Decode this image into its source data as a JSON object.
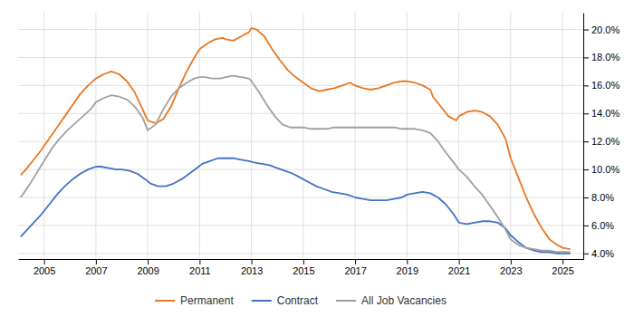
{
  "chart_data": {
    "type": "line",
    "xlim": [
      2004.0,
      2025.8
    ],
    "ylim": [
      0.036,
      0.212
    ],
    "xticks": [
      2005,
      2007,
      2009,
      2011,
      2013,
      2015,
      2017,
      2019,
      2021,
      2023,
      2025
    ],
    "yticks": [
      {
        "value": 0.04,
        "label": "4.0%"
      },
      {
        "value": 0.06,
        "label": "6.0%"
      },
      {
        "value": 0.08,
        "label": "8.0%"
      },
      {
        "value": 0.1,
        "label": "10.0%"
      },
      {
        "value": 0.12,
        "label": "12.0%"
      },
      {
        "value": 0.14,
        "label": "14.0%"
      },
      {
        "value": 0.16,
        "label": "16.0%"
      },
      {
        "value": 0.18,
        "label": "18.0%"
      },
      {
        "value": 0.2,
        "label": "20.0%"
      }
    ],
    "grid": true,
    "legend": "bottom",
    "series": [
      {
        "name": "Permanent",
        "color": "#E87722",
        "x": [
          2004.1,
          2004.3,
          2004.6,
          2004.9,
          2005.2,
          2005.5,
          2005.8,
          2006.1,
          2006.4,
          2006.7,
          2007.0,
          2007.3,
          2007.6,
          2007.9,
          2008.2,
          2008.5,
          2008.8,
          2009.0,
          2009.3,
          2009.6,
          2009.9,
          2010.2,
          2010.5,
          2010.8,
          2011.0,
          2011.3,
          2011.6,
          2011.9,
          2012.0,
          2012.3,
          2012.6,
          2012.9,
          2013.0,
          2013.2,
          2013.5,
          2013.8,
          2014.1,
          2014.4,
          2014.7,
          2015.0,
          2015.3,
          2015.6,
          2015.9,
          2016.2,
          2016.5,
          2016.8,
          2017.0,
          2017.3,
          2017.6,
          2017.9,
          2018.2,
          2018.5,
          2018.8,
          2019.0,
          2019.3,
          2019.6,
          2019.9,
          2020.0,
          2020.3,
          2020.6,
          2020.9,
          2021.0,
          2021.3,
          2021.6,
          2021.9,
          2022.2,
          2022.5,
          2022.8,
          2023.0,
          2023.3,
          2023.6,
          2023.9,
          2024.2,
          2024.5,
          2024.8,
          2025.0,
          2025.3
        ],
        "values": [
          0.096,
          0.1,
          0.107,
          0.114,
          0.122,
          0.13,
          0.138,
          0.146,
          0.154,
          0.16,
          0.165,
          0.168,
          0.17,
          0.168,
          0.163,
          0.155,
          0.143,
          0.135,
          0.133,
          0.136,
          0.145,
          0.158,
          0.17,
          0.18,
          0.186,
          0.19,
          0.193,
          0.194,
          0.193,
          0.192,
          0.195,
          0.198,
          0.201,
          0.2,
          0.195,
          0.186,
          0.178,
          0.171,
          0.166,
          0.162,
          0.158,
          0.156,
          0.157,
          0.158,
          0.16,
          0.162,
          0.16,
          0.158,
          0.157,
          0.158,
          0.16,
          0.162,
          0.163,
          0.163,
          0.162,
          0.16,
          0.157,
          0.152,
          0.145,
          0.138,
          0.135,
          0.138,
          0.141,
          0.142,
          0.141,
          0.138,
          0.132,
          0.122,
          0.108,
          0.094,
          0.08,
          0.068,
          0.058,
          0.05,
          0.046,
          0.044,
          0.043
        ]
      },
      {
        "name": "Contract",
        "color": "#4472C4",
        "x": [
          2004.1,
          2004.3,
          2004.6,
          2004.9,
          2005.2,
          2005.5,
          2005.8,
          2006.1,
          2006.4,
          2006.7,
          2007.0,
          2007.2,
          2007.5,
          2007.8,
          2008.0,
          2008.3,
          2008.6,
          2008.9,
          2009.1,
          2009.4,
          2009.7,
          2010.0,
          2010.3,
          2010.6,
          2010.9,
          2011.1,
          2011.4,
          2011.7,
          2012.0,
          2012.3,
          2012.6,
          2012.9,
          2013.1,
          2013.4,
          2013.7,
          2014.0,
          2014.3,
          2014.6,
          2014.9,
          2015.2,
          2015.5,
          2015.8,
          2016.1,
          2016.4,
          2016.7,
          2017.0,
          2017.3,
          2017.6,
          2017.9,
          2018.2,
          2018.5,
          2018.8,
          2019.0,
          2019.3,
          2019.6,
          2019.9,
          2020.2,
          2020.5,
          2020.8,
          2021.0,
          2021.3,
          2021.6,
          2021.9,
          2022.2,
          2022.5,
          2022.8,
          2023.0,
          2023.3,
          2023.6,
          2023.9,
          2024.2,
          2024.5,
          2024.8,
          2025.0,
          2025.3
        ],
        "values": [
          0.052,
          0.056,
          0.062,
          0.068,
          0.075,
          0.082,
          0.088,
          0.093,
          0.097,
          0.1,
          0.102,
          0.102,
          0.101,
          0.1,
          0.1,
          0.099,
          0.097,
          0.093,
          0.09,
          0.088,
          0.088,
          0.09,
          0.093,
          0.097,
          0.101,
          0.104,
          0.106,
          0.108,
          0.108,
          0.108,
          0.107,
          0.106,
          0.105,
          0.104,
          0.103,
          0.101,
          0.099,
          0.097,
          0.094,
          0.091,
          0.088,
          0.086,
          0.084,
          0.083,
          0.082,
          0.08,
          0.079,
          0.078,
          0.078,
          0.078,
          0.079,
          0.08,
          0.082,
          0.083,
          0.084,
          0.083,
          0.08,
          0.075,
          0.068,
          0.062,
          0.061,
          0.062,
          0.063,
          0.063,
          0.062,
          0.058,
          0.053,
          0.048,
          0.044,
          0.042,
          0.041,
          0.041,
          0.04,
          0.04,
          0.04
        ]
      },
      {
        "name": "All Job Vacancies",
        "color": "#A0A0A0",
        "x": [
          2004.1,
          2004.4,
          2004.7,
          2005.0,
          2005.3,
          2005.6,
          2005.9,
          2006.2,
          2006.5,
          2006.8,
          2007.0,
          2007.3,
          2007.6,
          2007.9,
          2008.2,
          2008.5,
          2008.8,
          2009.0,
          2009.3,
          2009.6,
          2009.9,
          2010.2,
          2010.5,
          2010.8,
          2011.0,
          2011.2,
          2011.5,
          2011.8,
          2012.0,
          2012.3,
          2012.6,
          2012.9,
          2013.0,
          2013.3,
          2013.6,
          2013.9,
          2014.2,
          2014.5,
          2014.8,
          2015.0,
          2015.3,
          2015.6,
          2015.9,
          2016.2,
          2016.5,
          2016.8,
          2017.0,
          2017.3,
          2017.6,
          2017.9,
          2018.2,
          2018.5,
          2018.8,
          2019.0,
          2019.3,
          2019.6,
          2019.9,
          2020.2,
          2020.5,
          2020.8,
          2021.0,
          2021.3,
          2021.6,
          2021.9,
          2022.2,
          2022.5,
          2022.8,
          2023.0,
          2023.3,
          2023.6,
          2023.9,
          2024.2,
          2024.5,
          2024.8,
          2025.0,
          2025.3
        ],
        "values": [
          0.08,
          0.088,
          0.097,
          0.106,
          0.115,
          0.122,
          0.128,
          0.133,
          0.138,
          0.143,
          0.148,
          0.151,
          0.153,
          0.152,
          0.15,
          0.145,
          0.137,
          0.128,
          0.132,
          0.143,
          0.152,
          0.158,
          0.162,
          0.165,
          0.166,
          0.166,
          0.165,
          0.165,
          0.166,
          0.167,
          0.166,
          0.165,
          0.163,
          0.155,
          0.146,
          0.138,
          0.132,
          0.13,
          0.13,
          0.13,
          0.129,
          0.129,
          0.129,
          0.13,
          0.13,
          0.13,
          0.13,
          0.13,
          0.13,
          0.13,
          0.13,
          0.13,
          0.129,
          0.129,
          0.129,
          0.128,
          0.126,
          0.12,
          0.112,
          0.105,
          0.1,
          0.095,
          0.088,
          0.082,
          0.074,
          0.066,
          0.057,
          0.05,
          0.046,
          0.044,
          0.043,
          0.042,
          0.042,
          0.041,
          0.041,
          0.041
        ]
      }
    ]
  }
}
